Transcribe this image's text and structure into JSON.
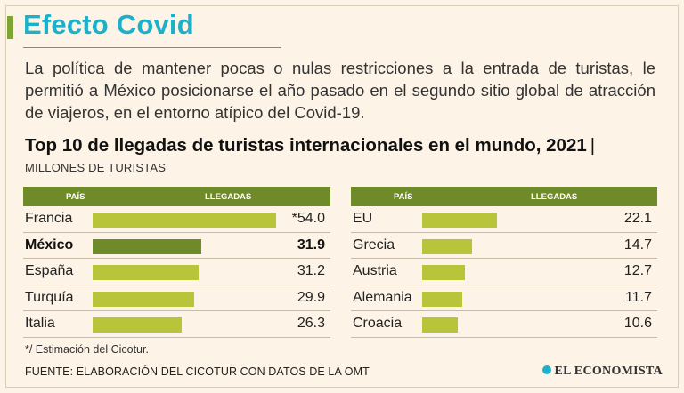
{
  "header": {
    "title": "Efecto Covid",
    "intro": "La política de mantener pocas o nulas restricciones a la entrada de turistas, le permitió a México posicionarse el año pasado en el segundo sitio global de atracción de viajeros, en el entorno atípico del Covid-19."
  },
  "chart_data": {
    "type": "bar",
    "title": "Top 10 de llegadas de turistas internacionales en el mundo, 2021",
    "title_pipe": "|",
    "subtitle": "MILLONES DE TURISTAS",
    "column_headers": {
      "country": "PAÍS",
      "arrivals": "LLEGADAS"
    },
    "xlim": [
      0,
      54.0
    ],
    "highlight": "México",
    "left": [
      {
        "country": "Francia",
        "value": 54.0,
        "label": "*54.0"
      },
      {
        "country": "México",
        "value": 31.9,
        "label": "31.9"
      },
      {
        "country": "España",
        "value": 31.2,
        "label": "31.2"
      },
      {
        "country": "Turquía",
        "value": 29.9,
        "label": "29.9"
      },
      {
        "country": "Italia",
        "value": 26.3,
        "label": "26.3"
      }
    ],
    "right": [
      {
        "country": "EU",
        "value": 22.1,
        "label": "22.1"
      },
      {
        "country": "Grecia",
        "value": 14.7,
        "label": "14.7"
      },
      {
        "country": "Austria",
        "value": 12.7,
        "label": "12.7"
      },
      {
        "country": "Alemania",
        "value": 11.7,
        "label": "11.7"
      },
      {
        "country": "Croacia",
        "value": 10.6,
        "label": "10.6"
      }
    ],
    "colors": {
      "bar": "#b8c43a",
      "highlight_bar": "#6e8a29",
      "header": "#6e8a29"
    }
  },
  "footer": {
    "note": "*/ Estimación del Cicotur.",
    "source": "FUENTE: ELABORACIÓN DEL CICOTUR CON DATOS DE LA OMT",
    "brand": "EL ECONOMISTA"
  }
}
